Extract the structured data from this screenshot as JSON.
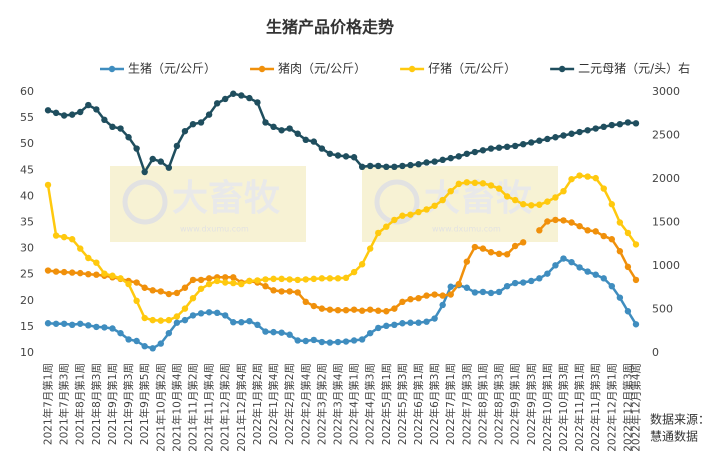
{
  "chart_data": {
    "type": "line",
    "title": "生猪产品价格走势",
    "categories": [
      "2021年7月第1周",
      null,
      "2021年7月第3周",
      null,
      "2021年8月第1周",
      null,
      "2021年8月第3周",
      null,
      "2021年9月第1周",
      null,
      "2021年9月第3周",
      null,
      "2021年9月第5周",
      null,
      "2021年10月第2周",
      null,
      "2021年10月第4周",
      null,
      "2021年11月第2周",
      null,
      "2021年11月第4周",
      null,
      "2021年12月第2周",
      null,
      "2021年12月第4周",
      null,
      "2022年1月第2周",
      null,
      "2022年1月第4周",
      null,
      "2022年2月第2周",
      null,
      "2022年2月第4周",
      null,
      "2022年3月第2周",
      null,
      "2022年3月第4周",
      null,
      "2022年4月第1周",
      null,
      "2022年4月第3周",
      null,
      "2022年5月第1周",
      null,
      "2022年5月第3周",
      null,
      "2022年6月第1周",
      null,
      "2022年6月第3周",
      null,
      "2022年7月第1周",
      null,
      "2022年7月第3周",
      null,
      "2022年8月第1周",
      null,
      "2022年8月第3周",
      null,
      "2022年9月第1周",
      null,
      "2022年9月第3周",
      null,
      "2022年10月第1周",
      null,
      "2022年10月第3周",
      null,
      "2022年11月第1周",
      null,
      "2022年11月第3周",
      null,
      "2022年12月第1周",
      null,
      "2022年12月第3周",
      "2022年12月第4周"
    ],
    "series": [
      {
        "name": "生猪（元/公斤）",
        "color": "#3f8dbf",
        "values": [
          15.7,
          15.6,
          15.6,
          15.4,
          15.6,
          15.3,
          15.0,
          14.9,
          14.7,
          13.8,
          12.6,
          12.3,
          11.3,
          10.9,
          11.8,
          13.8,
          15.8,
          16.3,
          17.2,
          17.6,
          17.8,
          17.7,
          17.2,
          15.9,
          15.9,
          16.1,
          15.4,
          14.1,
          14.0,
          13.9,
          13.5,
          12.4,
          12.3,
          12.5,
          12.1,
          12.0,
          12.1,
          12.2,
          12.4,
          12.6,
          13.8,
          14.8,
          15.2,
          15.4,
          15.7,
          15.8,
          15.8,
          16.0,
          16.6,
          19.2,
          22.7,
          23.0,
          22.5,
          21.6,
          21.7,
          21.5,
          21.7,
          22.8,
          23.4,
          23.5,
          23.8,
          24.3,
          25.2,
          26.8,
          28.1,
          27.4,
          26.4,
          25.6,
          25.0,
          24.3,
          22.8,
          20.6,
          18.0,
          15.5
        ]
      },
      {
        "name": "猪肉（元/公斤）",
        "color": "#f0900b",
        "values": [
          25.8,
          25.6,
          25.5,
          25.4,
          25.3,
          25.1,
          25.0,
          24.8,
          24.5,
          24.2,
          23.8,
          23.5,
          22.5,
          22.0,
          21.8,
          21.3,
          21.5,
          22.5,
          24.0,
          24.0,
          24.3,
          24.5,
          24.5,
          24.5,
          23.5,
          23.8,
          23.5,
          22.8,
          22.0,
          21.8,
          21.8,
          21.6,
          19.8,
          19.0,
          18.5,
          18.3,
          18.2,
          18.2,
          18.3,
          18.1,
          18.3,
          18.1,
          18.0,
          18.5,
          19.8,
          20.3,
          20.5,
          21.0,
          21.2,
          21.0,
          21.2,
          23.2,
          27.5,
          30.3,
          30.0,
          29.3,
          29.0,
          28.9,
          30.5,
          31.2,
          null,
          33.5,
          35.2,
          35.5,
          35.4,
          35.0,
          34.3,
          33.5,
          33.3,
          32.4,
          31.8,
          29.5,
          26.5,
          24.0
        ]
      },
      {
        "name": "仔猪（元/公斤）",
        "color": "#ffc90e",
        "values": [
          42.2,
          32.5,
          32.2,
          31.8,
          30.0,
          28.2,
          27.3,
          25.2,
          24.8,
          24.3,
          23.2,
          20.0,
          16.7,
          16.3,
          16.2,
          16.3,
          17.0,
          18.5,
          20.5,
          22.3,
          23.2,
          23.8,
          23.5,
          23.4,
          23.2,
          23.8,
          23.9,
          24.1,
          24.2,
          24.2,
          24.1,
          24.0,
          24.1,
          24.2,
          24.3,
          24.3,
          24.3,
          24.4,
          25.5,
          27.0,
          30.0,
          33.0,
          34.2,
          35.5,
          36.3,
          36.5,
          37.0,
          37.5,
          38.2,
          39.3,
          41.0,
          42.4,
          42.7,
          42.6,
          42.5,
          42.1,
          41.5,
          40.0,
          39.3,
          38.5,
          38.3,
          38.4,
          39.0,
          39.8,
          41.0,
          43.3,
          44.0,
          43.8,
          43.5,
          41.5,
          38.5,
          35.0,
          33.0,
          30.8
        ]
      },
      {
        "name": "二元母猪（元/头）右",
        "color": "#1f4e5e",
        "axis": "y2",
        "values": [
          2790,
          2760,
          2730,
          2740,
          2770,
          2850,
          2800,
          2680,
          2600,
          2580,
          2480,
          2350,
          2080,
          2230,
          2200,
          2130,
          2380,
          2550,
          2630,
          2650,
          2740,
          2870,
          2920,
          2980,
          2960,
          2930,
          2880,
          2650,
          2600,
          2560,
          2580,
          2520,
          2450,
          2430,
          2350,
          2290,
          2270,
          2260,
          2250,
          2140,
          2150,
          2150,
          2140,
          2140,
          2150,
          2160,
          2170,
          2190,
          2200,
          2220,
          2240,
          2260,
          2290,
          2310,
          2330,
          2350,
          2360,
          2370,
          2380,
          2400,
          2420,
          2440,
          2460,
          2480,
          2500,
          2520,
          2540,
          2560,
          2580,
          2600,
          2620,
          2630,
          2650,
          2640
        ]
      }
    ],
    "ylim": [
      10,
      60
    ],
    "yticks": [
      10,
      15,
      20,
      25,
      30,
      35,
      40,
      45,
      50,
      55,
      60
    ],
    "y2lim": [
      0,
      3000
    ],
    "y2ticks": [
      0,
      500,
      1000,
      1500,
      2000,
      2500,
      3000
    ],
    "grid": false,
    "legend": "top",
    "watermark": {
      "text": "大畜牧",
      "url": "www.dxumu.com"
    },
    "source": [
      "数据来源：",
      "慧通数据"
    ]
  }
}
